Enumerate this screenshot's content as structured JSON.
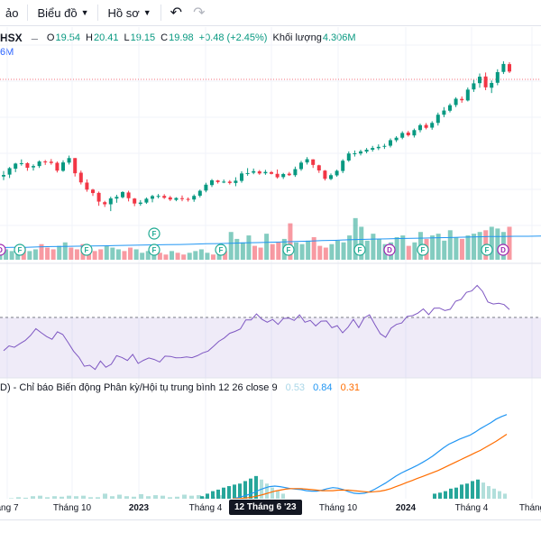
{
  "toolbar": {
    "items": [
      "ảo",
      "Biểu đồ",
      "Hồ sơ"
    ]
  },
  "legend": {
    "symbol": "HSX",
    "open_key": "O",
    "open": "19.54",
    "high_key": "H",
    "high": "20.41",
    "low_key": "L",
    "low": "19.15",
    "close_key": "C",
    "close": "19.98",
    "change": "+0.48 (+2.45%)",
    "volume_label": "Khối lượng",
    "volume": "4.306M",
    "volume_ma": "6M"
  },
  "markers": {
    "F": "F",
    "D": "D"
  },
  "macd": {
    "title": "D) - Chỉ báo Biến động Phân kỳ/Hội tụ trung bình 12 26 close 9",
    "histogram": "0.53",
    "macd": "0.84",
    "signal": "0.31"
  },
  "time_axis": {
    "labels": [
      "áng 7",
      "Tháng 10",
      "2023",
      "Tháng 4",
      "Tháng 10",
      "2024",
      "Tháng 4",
      "Tháng"
    ],
    "crosshair": "12 Tháng 6 '23"
  },
  "colors": {
    "up": "#089981",
    "down": "#f23645",
    "rsi": "#7e57c2",
    "macd": "#2196f3",
    "signal": "#ff6d00"
  },
  "chart_data": {
    "type": "candlestick",
    "price_candles": [
      [
        19.7,
        19.99,
        19.51,
        19.78
      ],
      [
        19.8,
        20.2,
        19.62,
        20.14
      ],
      [
        20.11,
        20.42,
        19.93,
        20.38
      ],
      [
        20.36,
        20.6,
        20.27,
        20.4
      ],
      [
        20.4,
        20.45,
        20.0,
        20.16
      ],
      [
        20.18,
        20.34,
        20.01,
        20.25
      ],
      [
        20.25,
        20.55,
        20.15,
        20.49
      ],
      [
        20.49,
        20.57,
        20.31,
        20.47
      ],
      [
        20.48,
        20.62,
        20.32,
        20.41
      ],
      [
        20.42,
        20.49,
        19.91,
        20.01
      ],
      [
        20.0,
        20.55,
        19.95,
        20.44
      ],
      [
        20.43,
        20.8,
        20.33,
        20.67
      ],
      [
        20.67,
        20.67,
        19.7,
        19.87
      ],
      [
        19.9,
        20.01,
        19.28,
        19.39
      ],
      [
        19.38,
        19.55,
        18.9,
        19.01
      ],
      [
        19.01,
        19.05,
        18.68,
        18.83
      ],
      [
        18.84,
        18.91,
        18.16,
        18.38
      ],
      [
        18.35,
        18.42,
        18.1,
        18.24
      ],
      [
        18.24,
        18.64,
        17.88,
        18.55
      ],
      [
        18.54,
        18.74,
        18.32,
        18.63
      ],
      [
        18.61,
        18.93,
        18.55,
        18.88
      ],
      [
        18.86,
        18.95,
        18.39,
        18.56
      ],
      [
        18.54,
        18.57,
        18.14,
        18.28
      ],
      [
        18.26,
        18.46,
        18.16,
        18.33
      ],
      [
        18.33,
        18.6,
        18.26,
        18.53
      ],
      [
        18.53,
        18.73,
        18.34,
        18.67
      ],
      [
        18.65,
        18.78,
        18.55,
        18.68
      ],
      [
        18.68,
        18.77,
        18.52,
        18.58
      ],
      [
        18.6,
        18.68,
        18.41,
        18.49
      ],
      [
        18.47,
        18.61,
        18.4,
        18.57
      ],
      [
        18.56,
        18.7,
        18.4,
        18.52
      ],
      [
        18.52,
        18.6,
        18.38,
        18.5
      ],
      [
        18.49,
        18.76,
        18.37,
        18.68
      ],
      [
        18.69,
        19.01,
        18.6,
        18.95
      ],
      [
        18.96,
        19.37,
        18.87,
        19.27
      ],
      [
        19.25,
        19.57,
        19.15,
        19.5
      ],
      [
        19.49,
        19.52,
        19.33,
        19.41
      ],
      [
        19.4,
        19.54,
        19.35,
        19.43
      ],
      [
        19.43,
        19.51,
        19.28,
        19.36
      ],
      [
        19.36,
        19.66,
        19.19,
        19.48
      ],
      [
        19.47,
        19.98,
        19.37,
        19.86
      ],
      [
        19.85,
        20.14,
        19.74,
        19.88
      ],
      [
        19.9,
        20.12,
        19.82,
        19.98
      ],
      [
        19.97,
        20.04,
        19.79,
        19.86
      ],
      [
        19.87,
        20.05,
        19.79,
        19.94
      ],
      [
        19.93,
        19.99,
        19.81,
        19.84
      ],
      [
        19.84,
        20.07,
        19.59,
        19.66
      ],
      [
        19.67,
        19.89,
        19.57,
        19.83
      ],
      [
        19.85,
        19.94,
        19.73,
        19.77
      ],
      [
        19.77,
        20.22,
        19.68,
        20.09
      ],
      [
        20.09,
        20.52,
        20.0,
        20.43
      ],
      [
        20.44,
        20.72,
        20.33,
        20.61
      ],
      [
        20.6,
        20.61,
        20.15,
        20.31
      ],
      [
        20.29,
        20.32,
        19.89,
        20.02
      ],
      [
        20.01,
        20.04,
        19.49,
        19.58
      ],
      [
        19.57,
        19.86,
        19.51,
        19.77
      ],
      [
        19.76,
        20.06,
        19.69,
        20.0
      ],
      [
        19.99,
        20.61,
        19.88,
        20.53
      ],
      [
        20.54,
        21.02,
        20.47,
        20.91
      ],
      [
        20.89,
        21.07,
        20.75,
        20.92
      ],
      [
        20.91,
        21.11,
        20.81,
        21.02
      ],
      [
        21.01,
        21.2,
        20.92,
        21.11
      ],
      [
        21.11,
        21.31,
        21.01,
        21.2
      ],
      [
        21.19,
        21.39,
        21.09,
        21.26
      ],
      [
        21.27,
        21.42,
        21.15,
        21.31
      ],
      [
        21.32,
        21.7,
        21.23,
        21.61
      ],
      [
        21.61,
        21.82,
        21.51,
        21.74
      ],
      [
        21.74,
        22.08,
        21.66,
        21.99
      ],
      [
        22.01,
        22.1,
        21.8,
        21.87
      ],
      [
        21.86,
        22.22,
        21.75,
        22.14
      ],
      [
        22.14,
        22.48,
        22.02,
        22.4
      ],
      [
        22.41,
        22.51,
        22.18,
        22.26
      ],
      [
        22.27,
        22.61,
        22.16,
        22.52
      ],
      [
        22.52,
        23.06,
        22.38,
        22.95
      ],
      [
        22.95,
        23.35,
        22.82,
        23.17
      ],
      [
        23.16,
        23.54,
        23.07,
        23.45
      ],
      [
        23.46,
        23.87,
        23.35,
        23.79
      ],
      [
        23.78,
        23.91,
        23.58,
        23.71
      ],
      [
        23.7,
        24.38,
        23.65,
        24.27
      ],
      [
        24.28,
        24.78,
        24.15,
        24.6
      ],
      [
        24.61,
        25.12,
        24.37,
        24.95
      ],
      [
        24.96,
        25.17,
        24.24,
        24.39
      ],
      [
        24.37,
        24.75,
        24.09,
        24.62
      ],
      [
        24.63,
        25.34,
        24.5,
        25.19
      ],
      [
        25.2,
        25.76,
        25.09,
        25.62
      ],
      [
        25.61,
        25.71,
        25.14,
        25.22
      ]
    ],
    "volume_bars": [
      0.3,
      0.6,
      0.5,
      0.8,
      0.7,
      0.5,
      0.6,
      0.9,
      0.7,
      0.6,
      0.8,
      1.0,
      0.7,
      0.6,
      0.9,
      0.7,
      0.5,
      0.6,
      0.8,
      0.7,
      0.6,
      0.5,
      0.7,
      0.6,
      0.4,
      0.5,
      0.6,
      0.4,
      0.3,
      0.5,
      0.4,
      0.3,
      0.4,
      0.5,
      0.6,
      0.4,
      0.3,
      0.4,
      0.5,
      1.6,
      1.2,
      1.0,
      1.4,
      0.8,
      0.7,
      1.5,
      0.9,
      1.0,
      1.2,
      2.1,
      1.0,
      0.9,
      1.1,
      1.3,
      0.8,
      0.7,
      0.9,
      1.1,
      1.0,
      1.4,
      2.4,
      1.9,
      1.1,
      1.5,
      1.2,
      0.9,
      1.0,
      1.3,
      1.4,
      0.8,
      1.0,
      1.6,
      1.2,
      1.4,
      1.5,
      1.1,
      1.7,
      1.3,
      1.2,
      1.4,
      1.5,
      1.6,
      1.7,
      1.9,
      1.8,
      1.6,
      1.9
    ],
    "volume_ma": [
      0.7,
      0.71,
      0.72,
      0.74,
      0.76,
      0.77,
      0.78,
      0.79,
      0.8,
      0.82,
      0.83,
      0.84,
      0.86,
      0.87,
      0.88,
      0.9,
      0.92,
      0.93,
      0.95,
      0.97,
      0.99,
      1.01,
      1.03,
      1.05,
      1.07,
      1.1,
      1.12,
      1.15,
      1.17,
      1.19,
      1.2,
      1.22,
      1.24,
      1.25,
      1.27,
      1.28,
      1.3,
      1.32,
      1.34,
      1.34,
      1.35,
      1.35,
      1.36
    ],
    "rsi": [
      39.3,
      42.8,
      41.8,
      44.3,
      46.6,
      50.2,
      55.0,
      52.1,
      49.4,
      47.5,
      52.8,
      50.9,
      45.1,
      39.0,
      34.6,
      28.3,
      29.0,
      26.0,
      32.0,
      27.6,
      29.7,
      35.8,
      34.5,
      32.4,
      36.7,
      30.3,
      32.5,
      34.2,
      33.1,
      31.3,
      35.5,
      35.3,
      34.3,
      34.4,
      34.9,
      34.4,
      35.8,
      37.8,
      39.1,
      42.5,
      46.0,
      48.4,
      51.7,
      53.1,
      54.9,
      61.2,
      61.3,
      65.5,
      61.7,
      59.6,
      61.6,
      58.1,
      62.3,
      62.6,
      60.9,
      64.9,
      59.6,
      60.9,
      57.0,
      60.4,
      60.5,
      55.7,
      57.2,
      52.1,
      56.1,
      61.7,
      55.8,
      62.7,
      64.9,
      57.9,
      51.4,
      48.9,
      55.4,
      58.1,
      59.1,
      63.8,
      64.3,
      66.1,
      69.1,
      65.0,
      69.6,
      69.7,
      68.0,
      68.9,
      74.6,
      75.8,
      80.9,
      81.9,
      85.8,
      81.6,
      74.0,
      72.6,
      73.1,
      72.2,
      68.7
    ],
    "macd_line": [
      0.0,
      0.02,
      0.05,
      0.08,
      0.12,
      0.17,
      0.21,
      0.24,
      0.25,
      0.24,
      0.22,
      0.2,
      0.19,
      0.18,
      0.16,
      0.15,
      0.15,
      0.17,
      0.2,
      0.22,
      0.21,
      0.18,
      0.14,
      0.11,
      0.1,
      0.11,
      0.14,
      0.19,
      0.25,
      0.31,
      0.38,
      0.45,
      0.51,
      0.56,
      0.61,
      0.66,
      0.72,
      0.78,
      0.85,
      0.93,
      1.01,
      1.08,
      1.13,
      1.18,
      1.22,
      1.26,
      1.32,
      1.39,
      1.45,
      1.51,
      1.58,
      1.63,
      1.67
    ],
    "signal_line": [
      0.0,
      0.0,
      0.01,
      0.02,
      0.04,
      0.06,
      0.09,
      0.12,
      0.15,
      0.17,
      0.19,
      0.2,
      0.2,
      0.2,
      0.19,
      0.18,
      0.17,
      0.16,
      0.16,
      0.16,
      0.17,
      0.17,
      0.17,
      0.16,
      0.15,
      0.14,
      0.13,
      0.14,
      0.15,
      0.17,
      0.2,
      0.24,
      0.28,
      0.32,
      0.36,
      0.4,
      0.44,
      0.48,
      0.52,
      0.56,
      0.61,
      0.66,
      0.71,
      0.76,
      0.81,
      0.86,
      0.91,
      0.96,
      1.02,
      1.08,
      1.14,
      1.21,
      1.28
    ],
    "macd_hist": [
      0.01,
      0.03,
      0.02,
      0.05,
      0.06,
      0.03,
      0.05,
      0.04,
      0.06,
      0.05,
      0.06,
      0.03,
      0.03,
      0.1,
      0.05,
      0.08,
      0.05,
      0.04,
      0.09,
      0.05,
      0.07,
      0.06,
      0.03,
      0.04,
      0.08,
      0.06,
      0.07,
      0.03,
      0.04,
      0.07
    ],
    "macd_hist_pos": [
      0.05,
      0.1,
      0.15,
      0.18,
      0.22,
      0.25,
      0.28,
      0.3,
      0.35,
      0.4,
      0.45,
      0.38,
      0.3,
      0.22,
      0.15,
      0.1
    ],
    "macd_hist_late": [
      0.1,
      0.12,
      0.15,
      0.2,
      0.22,
      0.28,
      0.3,
      0.35,
      0.38,
      0.32,
      0.25,
      0.2,
      0.15,
      0.1
    ]
  }
}
